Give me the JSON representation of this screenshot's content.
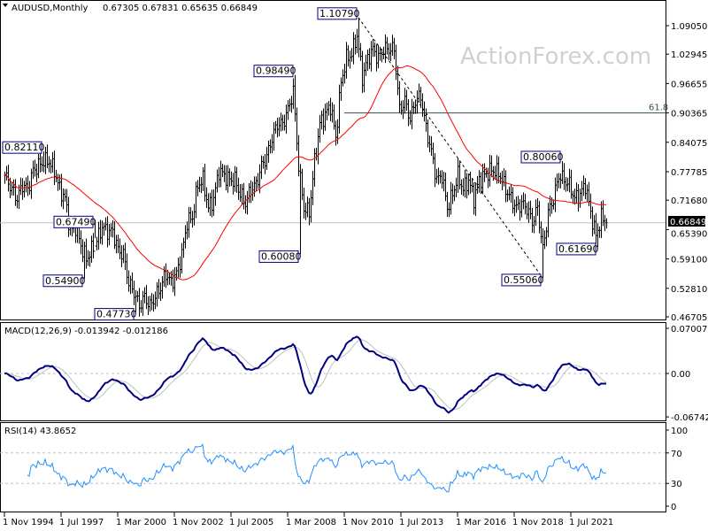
{
  "header": {
    "symbol_period": "AUDUSD,Monthly",
    "ohlc": "0.67305 0.67831 0.65635 0.66849"
  },
  "watermark": "ActionForex.com",
  "colors": {
    "bars": "#000000",
    "moving_average": "#ff0000",
    "macd_main": "#000080",
    "macd_signal": "#c0c0c0",
    "rsi": "#1e90ff",
    "annotation_border": "#000080",
    "current_price_badge": "#000000"
  },
  "chart_data": [
    {
      "type": "ohlc-bar",
      "title": "AUDUSD,Monthly",
      "ylim": [
        0.46705,
        1.0905
      ],
      "price_ticks": [
        "1.09050",
        "1.02945",
        "0.96655",
        "0.90365",
        "0.84075",
        "0.77785",
        "0.71680",
        "0.65390",
        "0.59100",
        "0.52810",
        "0.46705"
      ],
      "current_price": "0.66849",
      "last_bar": {
        "date": "2023-03",
        "open": 0.67305,
        "high": 0.67831,
        "low": 0.65635,
        "close": 0.66849
      },
      "fib_level": {
        "label": "61.8",
        "value": 0.90365,
        "from": "2010-11"
      },
      "trendline": {
        "from": {
          "date": "2011-07",
          "value": 1.1079
        },
        "to": {
          "date": "2020-03",
          "value": 0.5506
        },
        "style": "dashed"
      },
      "quarterly_closes": [
        [
          "1994-11",
          0.77
        ],
        [
          "1995-03",
          0.74
        ],
        [
          "1995-06",
          0.72
        ],
        [
          "1995-09",
          0.75
        ],
        [
          "1995-12",
          0.74
        ],
        [
          "1996-03",
          0.78
        ],
        [
          "1996-06",
          0.79
        ],
        [
          "1996-09",
          0.8
        ],
        [
          "1996-12",
          0.8
        ],
        [
          "1997-03",
          0.78
        ],
        [
          "1997-06",
          0.74
        ],
        [
          "1997-09",
          0.72
        ],
        [
          "1997-12",
          0.65
        ],
        [
          "1998-03",
          0.66
        ],
        [
          "1998-06",
          0.62
        ],
        [
          "1998-09",
          0.59
        ],
        [
          "1998-12",
          0.61
        ],
        [
          "1999-03",
          0.63
        ],
        [
          "1999-06",
          0.66
        ],
        [
          "1999-09",
          0.65
        ],
        [
          "1999-12",
          0.65
        ],
        [
          "2000-03",
          0.61
        ],
        [
          "2000-06",
          0.6
        ],
        [
          "2000-09",
          0.54
        ],
        [
          "2000-12",
          0.52
        ],
        [
          "2001-03",
          0.49
        ],
        [
          "2001-06",
          0.51
        ],
        [
          "2001-09",
          0.49
        ],
        [
          "2001-12",
          0.51
        ],
        [
          "2002-03",
          0.53
        ],
        [
          "2002-06",
          0.56
        ],
        [
          "2002-09",
          0.54
        ],
        [
          "2002-12",
          0.56
        ],
        [
          "2003-03",
          0.6
        ],
        [
          "2003-06",
          0.67
        ],
        [
          "2003-09",
          0.68
        ],
        [
          "2003-12",
          0.75
        ],
        [
          "2004-03",
          0.76
        ],
        [
          "2004-06",
          0.7
        ],
        [
          "2004-09",
          0.72
        ],
        [
          "2004-12",
          0.78
        ],
        [
          "2005-03",
          0.77
        ],
        [
          "2005-06",
          0.76
        ],
        [
          "2005-09",
          0.76
        ],
        [
          "2005-12",
          0.73
        ],
        [
          "2006-03",
          0.71
        ],
        [
          "2006-06",
          0.74
        ],
        [
          "2006-09",
          0.75
        ],
        [
          "2006-12",
          0.79
        ],
        [
          "2007-03",
          0.81
        ],
        [
          "2007-06",
          0.85
        ],
        [
          "2007-09",
          0.88
        ],
        [
          "2007-12",
          0.88
        ],
        [
          "2008-03",
          0.91
        ],
        [
          "2008-06",
          0.95
        ],
        [
          "2008-09",
          0.79
        ],
        [
          "2008-12",
          0.7
        ],
        [
          "2009-03",
          0.69
        ],
        [
          "2009-06",
          0.8
        ],
        [
          "2009-09",
          0.88
        ],
        [
          "2009-12",
          0.9
        ],
        [
          "2010-03",
          0.92
        ],
        [
          "2010-06",
          0.85
        ],
        [
          "2010-09",
          0.97
        ],
        [
          "2010-12",
          1.02
        ],
        [
          "2011-03",
          1.03
        ],
        [
          "2011-06",
          1.07
        ],
        [
          "2011-09",
          0.98
        ],
        [
          "2011-12",
          1.02
        ],
        [
          "2012-03",
          1.04
        ],
        [
          "2012-06",
          1.02
        ],
        [
          "2012-09",
          1.04
        ],
        [
          "2012-12",
          1.04
        ],
        [
          "2013-03",
          1.04
        ],
        [
          "2013-06",
          0.91
        ],
        [
          "2013-09",
          0.93
        ],
        [
          "2013-12",
          0.89
        ],
        [
          "2014-03",
          0.93
        ],
        [
          "2014-06",
          0.94
        ],
        [
          "2014-09",
          0.87
        ],
        [
          "2014-12",
          0.82
        ],
        [
          "2015-03",
          0.76
        ],
        [
          "2015-06",
          0.77
        ],
        [
          "2015-09",
          0.7
        ],
        [
          "2015-12",
          0.73
        ],
        [
          "2016-03",
          0.77
        ],
        [
          "2016-06",
          0.74
        ],
        [
          "2016-09",
          0.76
        ],
        [
          "2016-12",
          0.72
        ],
        [
          "2017-03",
          0.76
        ],
        [
          "2017-06",
          0.77
        ],
        [
          "2017-09",
          0.78
        ],
        [
          "2017-12",
          0.78
        ],
        [
          "2018-03",
          0.77
        ],
        [
          "2018-06",
          0.74
        ],
        [
          "2018-09",
          0.72
        ],
        [
          "2018-12",
          0.7
        ],
        [
          "2019-03",
          0.71
        ],
        [
          "2019-06",
          0.7
        ],
        [
          "2019-09",
          0.67
        ],
        [
          "2019-12",
          0.7
        ],
        [
          "2020-03",
          0.61
        ],
        [
          "2020-06",
          0.69
        ],
        [
          "2020-09",
          0.72
        ],
        [
          "2020-12",
          0.77
        ],
        [
          "2021-03",
          0.76
        ],
        [
          "2021-06",
          0.75
        ],
        [
          "2021-09",
          0.72
        ],
        [
          "2021-12",
          0.73
        ],
        [
          "2022-03",
          0.75
        ],
        [
          "2022-06",
          0.69
        ],
        [
          "2022-09",
          0.64
        ],
        [
          "2022-12",
          0.68
        ],
        [
          "2023-03",
          0.66849
        ]
      ],
      "annotations": [
        {
          "label": "0.82110",
          "date": "1996-09",
          "value": 0.8211,
          "kind": "high"
        },
        {
          "label": "0.67490",
          "date": "1999-02",
          "value": 0.6749,
          "kind": "low"
        },
        {
          "label": "0.54900",
          "date": "1998-08",
          "value": 0.549,
          "kind": "low"
        },
        {
          "label": "0.47730",
          "date": "2001-01",
          "value": 0.4773,
          "kind": "low"
        },
        {
          "label": "0.98490",
          "date": "2008-07",
          "value": 0.9849,
          "kind": "high"
        },
        {
          "label": "0.60080",
          "date": "2008-10",
          "value": 0.6008,
          "kind": "low"
        },
        {
          "label": "1.10790",
          "date": "2011-07",
          "value": 1.1079,
          "kind": "high"
        },
        {
          "label": "0.55060",
          "date": "2020-03",
          "value": 0.5506,
          "kind": "low"
        },
        {
          "label": "0.80060",
          "date": "2021-02",
          "value": 0.8006,
          "kind": "high"
        },
        {
          "label": "0.61690",
          "date": "2022-10",
          "value": 0.6169,
          "kind": "low"
        }
      ],
      "moving_average": {
        "color": "#ff0000"
      }
    },
    {
      "type": "line",
      "title": "MACD(12,26,9) -0.013942 -0.012186",
      "ylim": [
        -0.067423,
        0.070071
      ],
      "ticks": [
        "0.070071",
        "0.00",
        "-0.067423"
      ],
      "series": [
        "main",
        "signal"
      ]
    },
    {
      "type": "line",
      "title": "RSI(14) 43.8652",
      "ylim": [
        0,
        100
      ],
      "ticks": [
        "100",
        "70",
        "30",
        "0"
      ],
      "levels": [
        70,
        30
      ]
    }
  ],
  "time_axis": [
    "1 Nov 1994",
    "1 Jul 1997",
    "1 Mar 2000",
    "1 Nov 2002",
    "1 Jul 2005",
    "1 Mar 2008",
    "1 Nov 2010",
    "1 Jul 2013",
    "1 Mar 2016",
    "1 Nov 2018",
    "1 Jul 2021"
  ]
}
